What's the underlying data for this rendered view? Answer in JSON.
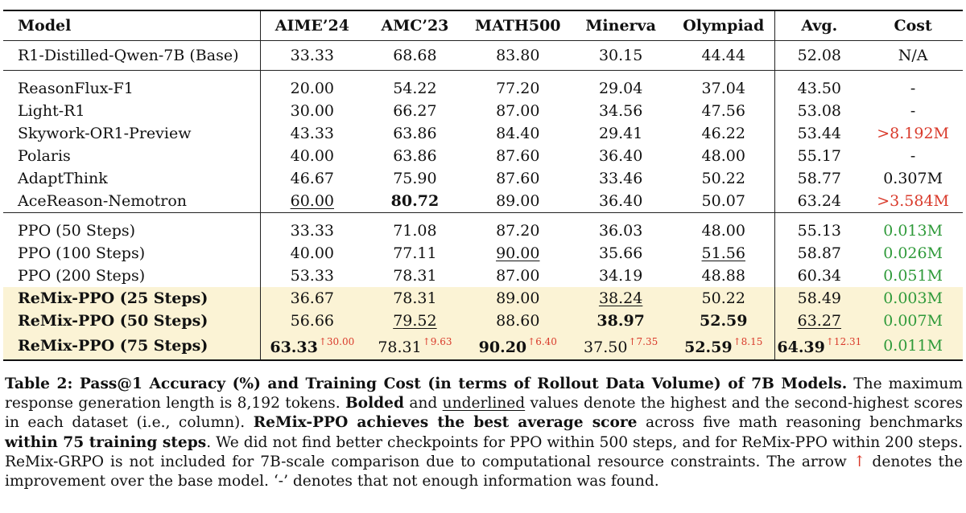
{
  "table": {
    "headers": [
      "Model",
      "AIME’24",
      "AMC’23",
      "MATH500",
      "Minerva",
      "Olympiad",
      "Avg.",
      "Cost"
    ],
    "base_row": {
      "model": "R1-Distilled-Qwen-7B (Base)",
      "values": [
        "33.33",
        "68.68",
        "83.80",
        "30.15",
        "44.44"
      ],
      "avg": "52.08",
      "cost": "N/A"
    },
    "baselines": [
      {
        "model": "ReasonFlux-F1",
        "values": [
          "20.00",
          "54.22",
          "77.20",
          "29.04",
          "37.04"
        ],
        "avg": "43.50",
        "cost": "-"
      },
      {
        "model": "Light-R1",
        "values": [
          "30.00",
          "66.27",
          "87.00",
          "34.56",
          "47.56"
        ],
        "avg": "53.08",
        "cost": "-"
      },
      {
        "model": "Skywork-OR1-Preview",
        "values": [
          "43.33",
          "63.86",
          "84.40",
          "29.41",
          "46.22"
        ],
        "avg": "53.44",
        "cost": ">8.192M"
      },
      {
        "model": "Polaris",
        "values": [
          "40.00",
          "63.86",
          "87.60",
          "36.40",
          "48.00"
        ],
        "avg": "55.17",
        "cost": "-"
      },
      {
        "model": "AdaptThink",
        "values": [
          "46.67",
          "75.90",
          "87.60",
          "33.46",
          "50.22"
        ],
        "avg": "58.77",
        "cost": "0.307M"
      },
      {
        "model": "AceReason-Nemotron",
        "values": [
          "60.00",
          "80.72",
          "89.00",
          "36.40",
          "50.07"
        ],
        "avg": "63.24",
        "cost": ">3.584M"
      }
    ],
    "ours": [
      {
        "model": "PPO (50 Steps)",
        "values": [
          "33.33",
          "71.08",
          "87.20",
          "36.03",
          "48.00"
        ],
        "avg": "55.13",
        "cost": "0.013M"
      },
      {
        "model": "PPO (100 Steps)",
        "values": [
          "40.00",
          "77.11",
          "90.00",
          "35.66",
          "51.56"
        ],
        "avg": "58.87",
        "cost": "0.026M"
      },
      {
        "model": "PPO (200 Steps)",
        "values": [
          "53.33",
          "78.31",
          "87.00",
          "34.19",
          "48.88"
        ],
        "avg": "60.34",
        "cost": "0.051M"
      },
      {
        "model": "ReMix-PPO (25 Steps)",
        "values": [
          "36.67",
          "78.31",
          "89.00",
          "38.24",
          "50.22"
        ],
        "avg": "58.49",
        "cost": "0.003M"
      },
      {
        "model": "ReMix-PPO (50 Steps)",
        "values": [
          "56.66",
          "79.52",
          "88.60",
          "38.97",
          "52.59"
        ],
        "avg": "63.27",
        "cost": "0.007M"
      },
      {
        "model": "ReMix-PPO (75 Steps)",
        "values": [
          "63.33",
          "78.31",
          "90.20",
          "37.50",
          "52.59"
        ],
        "avg": "64.39",
        "cost": "0.011M",
        "improvements": [
          "↑30.00",
          "↑9.63",
          "↑6.40",
          "↑7.35",
          "↑8.15"
        ],
        "avg_improvement": "↑12.31"
      }
    ]
  },
  "caption": {
    "t1": "Table 2: Pass@1 Accuracy (%) and Training Cost (in terms of Rollout Data Volume) of 7B Models.",
    "t2": " The maximum response generation length is 8,192 tokens. ",
    "t3": "Bolded",
    "t4": " and ",
    "t5": "underlined",
    "t6": " values denote the highest and the second-highest scores in each dataset (i.e., column). ",
    "t7": "ReMix-PPO achieves the best average score",
    "t8": " across five math reasoning benchmarks ",
    "t9": "within 75 training steps",
    "t10": ". We did not find better checkpoints for PPO within 500 steps, and for ReMix-PPO within 200 steps. ReMix-GRPO is not included for 7B-scale comparison due to computational resource constraints. The arrow ",
    "t11": "↑",
    "t12": " denotes the improvement over the base model. ‘-’ denotes that not enough information was found."
  },
  "colors": {
    "highlight_row": "#fbf3d5",
    "cost_red": "#d93a2b",
    "cost_green": "#2f9a3a",
    "arrow_red": "#d93a2b"
  }
}
